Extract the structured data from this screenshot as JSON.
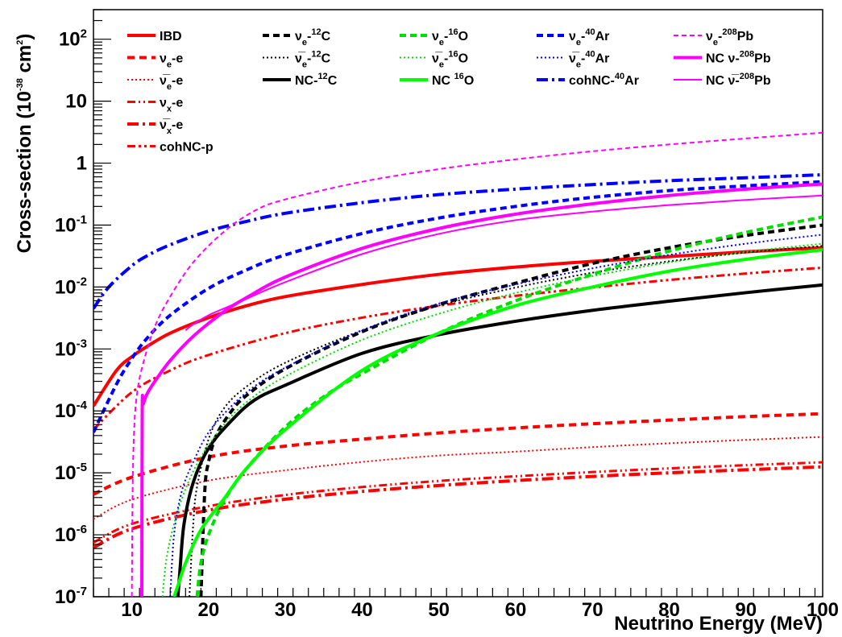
{
  "chart_data": {
    "type": "line",
    "xlabel": "Neutrino Energy (MeV)",
    "ylabel": "Cross-section (10^-38 cm^2)",
    "ylabel_parts": {
      "main": "Cross-section (10",
      "exp1": "-38",
      "mid": " cm",
      "exp2": "2",
      "end": ")"
    },
    "xlim": [
      5,
      100
    ],
    "ylim": [
      1e-07,
      300
    ],
    "yscale": "log",
    "grid": false,
    "legend_placement": "top",
    "x_ticks": [
      10,
      20,
      30,
      40,
      50,
      60,
      70,
      80,
      90,
      100
    ],
    "y_ticks": [
      {
        "value": 1e-07,
        "base": "10",
        "exp": "-7"
      },
      {
        "value": 1e-06,
        "base": "10",
        "exp": "-6"
      },
      {
        "value": 1e-05,
        "base": "10",
        "exp": "-5"
      },
      {
        "value": 0.0001,
        "base": "10",
        "exp": "-4"
      },
      {
        "value": 0.001,
        "base": "10",
        "exp": "-3"
      },
      {
        "value": 0.01,
        "base": "10",
        "exp": "-2"
      },
      {
        "value": 0.1,
        "base": "10",
        "exp": "-1"
      },
      {
        "value": 1,
        "base": "1",
        "exp": ""
      },
      {
        "value": 10,
        "base": "10",
        "exp": ""
      },
      {
        "value": 100,
        "base": "10",
        "exp": "2"
      }
    ],
    "series": [
      {
        "id": "ibd",
        "legend": [
          {
            "t": "IBD"
          }
        ],
        "color": "#ff0000",
        "width": 4,
        "dash": "",
        "x": [
          5,
          8,
          10,
          12,
          15,
          20,
          25,
          30,
          40,
          50,
          60,
          70,
          80,
          90,
          100
        ],
        "y": [
          0.00012,
          0.00045,
          0.00075,
          0.0011,
          0.0018,
          0.0032,
          0.005,
          0.007,
          0.011,
          0.016,
          0.021,
          0.026,
          0.031,
          0.037,
          0.043
        ]
      },
      {
        "id": "nue-e",
        "legend": [
          {
            "t": "ν"
          },
          {
            "t": "e",
            "sub": true
          },
          {
            "t": "-e"
          }
        ],
        "color": "#ff0000",
        "width": 4,
        "dash": "9,6",
        "x": [
          5,
          10,
          20,
          30,
          40,
          50,
          60,
          70,
          80,
          90,
          100
        ],
        "y": [
          4.5e-06,
          8.5e-06,
          1.8e-05,
          2.7e-05,
          3.5e-05,
          4.4e-05,
          5.3e-05,
          6.2e-05,
          7.1e-05,
          8.1e-05,
          9e-05
        ]
      },
      {
        "id": "nuebar-e",
        "legend": [
          {
            "t": "ν̅"
          },
          {
            "t": "e",
            "sub": true
          },
          {
            "t": "-e"
          }
        ],
        "color": "#ff0000",
        "width": 2,
        "dash": "2,3",
        "x": [
          5,
          10,
          20,
          30,
          40,
          50,
          60,
          70,
          80,
          90,
          100
        ],
        "y": [
          1.8e-06,
          3.7e-06,
          7.5e-06,
          1.1e-05,
          1.5e-05,
          1.9e-05,
          2.2e-05,
          2.6e-05,
          3e-05,
          3.4e-05,
          3.8e-05
        ]
      },
      {
        "id": "nux-e",
        "legend": [
          {
            "t": "ν"
          },
          {
            "t": "x",
            "sub": true
          },
          {
            "t": "-e"
          }
        ],
        "color": "#ff0000",
        "width": 3,
        "dash": "10,4,2,4,2,4",
        "x": [
          5,
          10,
          20,
          30,
          40,
          50,
          60,
          70,
          80,
          90,
          100
        ],
        "y": [
          7.5e-07,
          1.5e-06,
          2.9e-06,
          4.4e-06,
          5.9e-06,
          7.4e-06,
          8.8e-06,
          1.03e-05,
          1.18e-05,
          1.33e-05,
          1.48e-05
        ]
      },
      {
        "id": "nuxbar-e",
        "legend": [
          {
            "t": "ν̅"
          },
          {
            "t": "x",
            "sub": true
          },
          {
            "t": "-e"
          }
        ],
        "color": "#ff0000",
        "width": 4,
        "dash": "14,5,3,5",
        "x": [
          5,
          10,
          20,
          30,
          40,
          50,
          60,
          70,
          80,
          90,
          100
        ],
        "y": [
          6.2e-07,
          1.25e-06,
          2.5e-06,
          3.75e-06,
          5e-06,
          6.25e-06,
          7.5e-06,
          8.75e-06,
          1e-05,
          1.12e-05,
          1.25e-05
        ]
      },
      {
        "id": "cohnc-p",
        "legend": [
          {
            "t": "cohNC-p"
          }
        ],
        "color": "#ff0000",
        "width": 3,
        "dash": "10,4,3,4,3,4",
        "x": [
          5,
          10,
          15,
          20,
          30,
          40,
          50,
          60,
          70,
          80,
          90,
          100
        ],
        "y": [
          5e-05,
          0.0002,
          0.00045,
          0.0008,
          0.0018,
          0.0032,
          0.005,
          0.0072,
          0.0098,
          0.013,
          0.0165,
          0.0205
        ]
      },
      {
        "id": "nue-12c",
        "legend": [
          {
            "t": "ν"
          },
          {
            "t": "e",
            "sub": true
          },
          {
            "t": "-"
          },
          {
            "t": "12",
            "sup": true
          },
          {
            "t": "C"
          }
        ],
        "color": "#000000",
        "width": 4,
        "dash": "8,5",
        "x": [
          19.0,
          19.5,
          20,
          21,
          23,
          25,
          30,
          40,
          50,
          60,
          70,
          80,
          90,
          100
        ],
        "y": [
          1e-07,
          5e-06,
          1.5e-05,
          4e-05,
          0.0001,
          0.00018,
          0.00048,
          0.0019,
          0.0052,
          0.0115,
          0.024,
          0.043,
          0.068,
          0.1
        ]
      },
      {
        "id": "nuebar-12c",
        "legend": [
          {
            "t": "ν̅"
          },
          {
            "t": "e",
            "sub": true
          },
          {
            "t": "-"
          },
          {
            "t": "12",
            "sup": true
          },
          {
            "t": "C"
          }
        ],
        "color": "#000000",
        "width": 2,
        "dash": "2,3",
        "x": [
          17.5,
          18.0,
          18.5,
          20,
          22,
          25,
          30,
          40,
          50,
          60,
          70,
          80,
          90,
          100
        ],
        "y": [
          1e-07,
          1.5e-06,
          6e-06,
          3.5e-05,
          0.00011,
          0.00025,
          0.0006,
          0.002,
          0.005,
          0.0098,
          0.017,
          0.026,
          0.036,
          0.046
        ]
      },
      {
        "id": "nc-12c",
        "legend": [
          {
            "t": "NC-"
          },
          {
            "t": "12",
            "sup": true
          },
          {
            "t": "C"
          }
        ],
        "color": "#000000",
        "width": 4,
        "dash": "",
        "x": [
          16.0,
          16.3,
          16.8,
          18,
          20,
          23,
          26,
          30,
          40,
          50,
          60,
          70,
          80,
          90,
          100
        ],
        "y": [
          1e-07,
          3e-07,
          1.5e-06,
          7e-06,
          2.5e-05,
          7e-05,
          0.00015,
          0.00026,
          0.00085,
          0.0017,
          0.0028,
          0.0042,
          0.0059,
          0.0081,
          0.0108
        ]
      },
      {
        "id": "nue-16o",
        "legend": [
          {
            "t": "ν"
          },
          {
            "t": "e",
            "sub": true
          },
          {
            "t": "-"
          },
          {
            "t": "16",
            "sup": true
          },
          {
            "t": "O"
          }
        ],
        "color": "#00dd00",
        "width": 4,
        "dash": "8,5",
        "x": [
          18.5,
          19,
          20,
          22,
          25,
          30,
          35,
          40,
          50,
          60,
          70,
          80,
          90,
          100
        ],
        "y": [
          1e-07,
          3.5e-07,
          1e-06,
          3.5e-06,
          1.2e-05,
          5.5e-05,
          0.00017,
          0.0004,
          0.0018,
          0.006,
          0.016,
          0.038,
          0.076,
          0.135
        ]
      },
      {
        "id": "nuebar-16o",
        "legend": [
          {
            "t": "ν̅"
          },
          {
            "t": "e",
            "sub": true
          },
          {
            "t": "-"
          },
          {
            "t": "16",
            "sup": true
          },
          {
            "t": "O"
          }
        ],
        "color": "#00dd00",
        "width": 2,
        "dash": "2,3",
        "x": [
          14.0,
          14.5,
          15.5,
          17,
          19,
          22,
          25,
          30,
          40,
          50,
          60,
          70,
          80,
          90,
          100
        ],
        "y": [
          1e-07,
          4e-07,
          1.5e-06,
          5.5e-06,
          1.8e-05,
          6e-05,
          0.00014,
          0.00036,
          0.0014,
          0.0037,
          0.008,
          0.015,
          0.025,
          0.037,
          0.05
        ]
      },
      {
        "id": "nc-16o",
        "legend": [
          {
            "t": "NC "
          },
          {
            "t": "16",
            "sup": true
          },
          {
            "t": "O"
          }
        ],
        "color": "#00ff00",
        "width": 4,
        "dash": "",
        "x": [
          15.5,
          16,
          17,
          19,
          22,
          25,
          30,
          40,
          50,
          60,
          70,
          80,
          90,
          100
        ],
        "y": [
          1e-07,
          1.5e-07,
          3.5e-07,
          1.2e-06,
          3.8e-06,
          1.2e-05,
          5e-05,
          0.00045,
          0.0018,
          0.005,
          0.01,
          0.018,
          0.028,
          0.04
        ]
      },
      {
        "id": "nue-40ar",
        "legend": [
          {
            "t": "ν"
          },
          {
            "t": "e",
            "sub": true
          },
          {
            "t": "-"
          },
          {
            "t": "40",
            "sup": true
          },
          {
            "t": "Ar"
          }
        ],
        "color": "#0000ff",
        "width": 4,
        "dash": "8,5",
        "x": [
          5,
          8,
          10,
          12,
          15,
          20,
          25,
          30,
          40,
          50,
          60,
          70,
          80,
          90,
          100
        ],
        "y": [
          4.5e-05,
          0.00027,
          0.0007,
          0.0015,
          0.0035,
          0.0095,
          0.019,
          0.033,
          0.073,
          0.13,
          0.2,
          0.28,
          0.36,
          0.43,
          0.5
        ]
      },
      {
        "id": "nuebar-40ar",
        "legend": [
          {
            "t": "ν̅"
          },
          {
            "t": "e",
            "sub": true
          },
          {
            "t": "-"
          },
          {
            "t": "40",
            "sup": true
          },
          {
            "t": "Ar"
          }
        ],
        "color": "#0000ff",
        "width": 2,
        "dash": "2,3",
        "x": [
          15.0,
          15.5,
          16.5,
          18,
          20,
          23,
          26,
          30,
          40,
          50,
          60,
          70,
          80,
          90,
          100
        ],
        "y": [
          1e-07,
          1e-06,
          5e-06,
          1.5e-05,
          4.5e-05,
          0.00012,
          0.00025,
          0.0005,
          0.002,
          0.0054,
          0.011,
          0.02,
          0.033,
          0.05,
          0.07
        ]
      },
      {
        "id": "cohnc-40ar",
        "legend": [
          {
            "t": "cohNC-"
          },
          {
            "t": "40",
            "sup": true
          },
          {
            "t": "Ar"
          }
        ],
        "color": "#0000ff",
        "width": 4,
        "dash": "14,5,3,5",
        "x": [
          5,
          7,
          10,
          12,
          15,
          20,
          25,
          30,
          40,
          50,
          60,
          70,
          80,
          90,
          100
        ],
        "y": [
          0.0045,
          0.01,
          0.022,
          0.032,
          0.048,
          0.08,
          0.115,
          0.155,
          0.23,
          0.31,
          0.38,
          0.45,
          0.52,
          0.58,
          0.65
        ]
      },
      {
        "id": "nue-208pb",
        "legend": [
          {
            "t": "ν"
          },
          {
            "t": "e",
            "sub": true
          },
          {
            "t": "-"
          },
          {
            "t": "208",
            "sup": true
          },
          {
            "t": "Pb"
          }
        ],
        "color": "#ff00ff",
        "width": 2,
        "dash": "6,4",
        "x": [
          10.0,
          10.1,
          10.3,
          10.7,
          11.5,
          13,
          15,
          18,
          22,
          26,
          30,
          40,
          50,
          60,
          70,
          80,
          90,
          100
        ],
        "y": [
          1e-07,
          5e-06,
          5e-05,
          0.0002,
          0.0006,
          0.0023,
          0.007,
          0.025,
          0.078,
          0.17,
          0.26,
          0.5,
          0.8,
          1.15,
          1.55,
          2.0,
          2.5,
          3.1
        ]
      },
      {
        "id": "nc-nu-208pb",
        "legend": [
          {
            "t": "NC ν-"
          },
          {
            "t": "208",
            "sup": true
          },
          {
            "t": "Pb"
          }
        ],
        "color": "#ff00ff",
        "width": 4,
        "dash": "",
        "x": [
          11.3,
          11.35,
          11.5,
          12,
          13,
          15,
          18,
          22,
          25,
          30,
          40,
          50,
          60,
          70,
          80,
          90,
          100
        ],
        "y": [
          1e-07,
          0.0001,
          0.00013,
          0.00019,
          0.0003,
          0.00065,
          0.0016,
          0.004,
          0.0068,
          0.0145,
          0.042,
          0.088,
          0.15,
          0.22,
          0.3,
          0.38,
          0.46
        ]
      },
      {
        "id": "nc-nubar-208pb",
        "legend": [
          {
            "t": "NC ν̅-"
          },
          {
            "t": "208",
            "sup": true
          },
          {
            "t": "Pb"
          }
        ],
        "color": "#ff00ff",
        "width": 2,
        "dash": "",
        "x": [
          17.0,
          18,
          20,
          22,
          25,
          30,
          40,
          50,
          60,
          70,
          80,
          90,
          100
        ],
        "y": [
          0.002,
          0.0025,
          0.0035,
          0.0045,
          0.0065,
          0.012,
          0.034,
          0.072,
          0.12,
          0.165,
          0.21,
          0.255,
          0.3
        ]
      }
    ]
  }
}
